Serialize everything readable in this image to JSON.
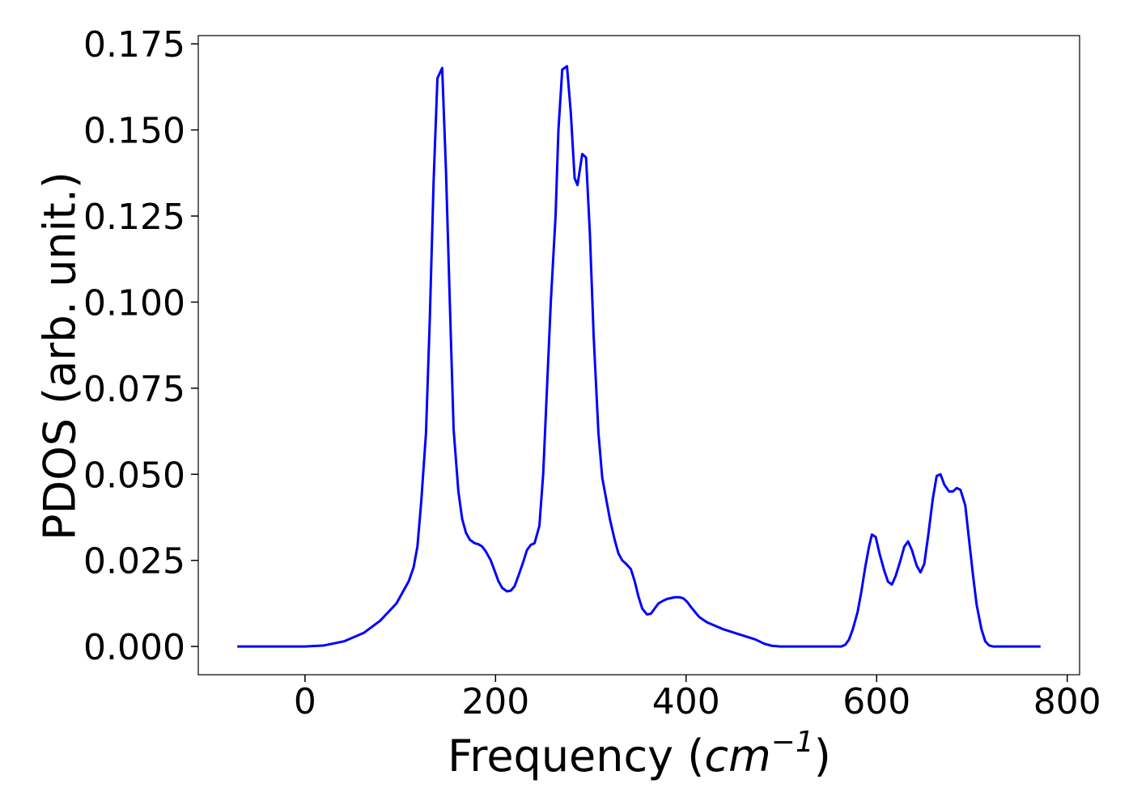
{
  "chart_data": {
    "type": "line",
    "xlabel_parts": [
      "Frequency (",
      "cm",
      "−1",
      ")"
    ],
    "ylabel": "PDOS (arb. unit.)",
    "color": "#0000ff",
    "xlim": [
      -112,
      813
    ],
    "ylim": [
      -0.0082,
      0.1774
    ],
    "xticks": [
      0,
      200,
      400,
      600,
      800
    ],
    "yticks": [
      {
        "value": 0,
        "label": "0.000"
      },
      {
        "value": 0.025,
        "label": "0.025"
      },
      {
        "value": 0.05,
        "label": "0.050"
      },
      {
        "value": 0.075,
        "label": "0.075"
      },
      {
        "value": 0.1,
        "label": "0.100"
      },
      {
        "value": 0.125,
        "label": "0.125"
      },
      {
        "value": 0.15,
        "label": "0.150"
      },
      {
        "value": 0.175,
        "label": "0.175"
      }
    ],
    "x": [
      -71,
      0,
      20,
      41,
      62,
      79,
      96,
      104,
      109,
      114,
      118,
      122,
      127,
      131,
      135,
      139,
      144,
      148,
      152,
      156,
      161,
      165,
      169,
      173,
      178,
      182,
      186,
      190,
      195,
      199,
      203,
      207,
      212,
      216,
      220,
      224,
      229,
      233,
      237,
      241,
      246,
      250,
      254,
      258,
      263,
      266,
      270,
      275,
      279,
      283,
      286,
      291,
      295,
      299,
      303,
      308,
      312,
      316,
      320,
      325,
      329,
      333,
      337,
      342,
      346,
      350,
      354,
      359,
      363,
      367,
      371,
      376,
      380,
      388,
      393,
      397,
      401,
      405,
      410,
      414,
      422,
      439,
      456,
      473,
      482,
      490,
      499,
      563,
      567,
      571,
      575,
      580,
      584,
      588,
      592,
      595,
      599,
      603,
      608,
      612,
      616,
      620,
      625,
      629,
      633,
      637,
      642,
      646,
      650,
      654,
      659,
      663,
      667,
      671,
      676,
      680,
      684,
      688,
      693,
      697,
      701,
      705,
      710,
      714,
      718,
      722,
      772
    ],
    "values": [
      0,
      0,
      0.0003,
      0.0015,
      0.004,
      0.0075,
      0.0125,
      0.0165,
      0.019,
      0.023,
      0.029,
      0.042,
      0.062,
      0.095,
      0.135,
      0.165,
      0.168,
      0.138,
      0.1,
      0.063,
      0.045,
      0.037,
      0.033,
      0.031,
      0.03,
      0.0297,
      0.029,
      0.0275,
      0.025,
      0.022,
      0.019,
      0.017,
      0.016,
      0.0162,
      0.0175,
      0.0205,
      0.0245,
      0.028,
      0.0295,
      0.03,
      0.035,
      0.05,
      0.075,
      0.1,
      0.125,
      0.15,
      0.1675,
      0.1685,
      0.155,
      0.136,
      0.134,
      0.143,
      0.142,
      0.12,
      0.09,
      0.062,
      0.049,
      0.043,
      0.037,
      0.031,
      0.027,
      0.025,
      0.024,
      0.0225,
      0.019,
      0.0145,
      0.011,
      0.0093,
      0.0095,
      0.011,
      0.0125,
      0.0133,
      0.0138,
      0.0143,
      0.0143,
      0.014,
      0.013,
      0.0115,
      0.0098,
      0.0085,
      0.007,
      0.005,
      0.0035,
      0.002,
      0.0008,
      0.0002,
      0,
      0,
      0.0005,
      0.002,
      0.005,
      0.01,
      0.016,
      0.023,
      0.029,
      0.0325,
      0.0318,
      0.027,
      0.022,
      0.0188,
      0.018,
      0.0205,
      0.025,
      0.029,
      0.0305,
      0.028,
      0.0235,
      0.0215,
      0.024,
      0.032,
      0.043,
      0.0495,
      0.05,
      0.047,
      0.045,
      0.045,
      0.046,
      0.0455,
      0.041,
      0.031,
      0.021,
      0.012,
      0.005,
      0.0015,
      0.0003,
      0,
      0
    ]
  }
}
